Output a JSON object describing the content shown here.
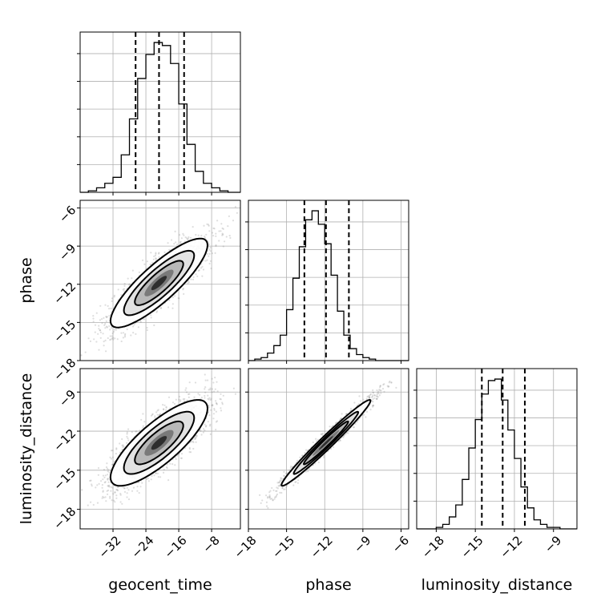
{
  "chart_data": {
    "type": "corner",
    "parameters": [
      "geocent_time",
      "phase",
      "luminosity_distance"
    ],
    "ranges": {
      "geocent_time": [
        -40,
        -1
      ],
      "phase": [
        -18,
        -5.4
      ],
      "luminosity_distance": [
        -19.5,
        -7.2
      ]
    },
    "ticks": {
      "geocent_time": [
        -32,
        -24,
        -16,
        -8
      ],
      "phase": [
        -18,
        -15,
        -12,
        -9,
        -6
      ],
      "luminosity_distance": [
        -18,
        -15,
        -12,
        -9
      ]
    },
    "tick_labels": {
      "geocent_time": [
        "−32",
        "−24",
        "−16",
        "−8"
      ],
      "phase": [
        "−18",
        "−15",
        "−12",
        "−9",
        "−6"
      ],
      "luminosity_distance": [
        "−18",
        "−15",
        "−12",
        "−9"
      ]
    },
    "quantiles": {
      "geocent_time": [
        -26.5,
        -20.8,
        -14.7
      ],
      "phase": [
        -13.6,
        -11.9,
        -10.1
      ],
      "luminosity_distance": [
        -14.5,
        -12.9,
        -11.2
      ]
    },
    "histograms": {
      "geocent_time": {
        "edges": [
          -40,
          -38,
          -36,
          -34,
          -32,
          -30,
          -28,
          -26,
          -24,
          -22,
          -20,
          -18,
          -16,
          -14,
          -12,
          -10,
          -8,
          -6,
          -4,
          -2,
          -1
        ],
        "counts": [
          0,
          1,
          3,
          6,
          10,
          25,
          49,
          76,
          92,
          100,
          98,
          86,
          59,
          32,
          14,
          6,
          3,
          1,
          0,
          0
        ]
      },
      "phase": {
        "edges": [
          -18,
          -17.5,
          -17,
          -16.5,
          -16,
          -15.5,
          -15,
          -14.5,
          -14,
          -13.5,
          -13,
          -12.5,
          -12,
          -11.5,
          -11,
          -10.5,
          -10,
          -9.5,
          -9,
          -8.5,
          -8,
          -7.5,
          -7,
          -6.5,
          -6,
          -5.4
        ],
        "counts": [
          0,
          1,
          2,
          5,
          10,
          17,
          34,
          55,
          76,
          94,
          100,
          91,
          78,
          57,
          33,
          17,
          8,
          4,
          2,
          1,
          0,
          0,
          0,
          0,
          0
        ]
      },
      "luminosity_distance": {
        "edges": [
          -19.5,
          -19,
          -18.5,
          -18,
          -17.5,
          -17,
          -16.5,
          -16,
          -15.5,
          -15,
          -14.5,
          -14,
          -13.5,
          -13,
          -12.5,
          -12,
          -11.5,
          -11,
          -10.5,
          -10,
          -9.5,
          -9,
          -8.5,
          -8,
          -7.5,
          -7.2
        ],
        "counts": [
          0,
          0,
          0,
          1,
          3,
          8,
          16,
          33,
          54,
          73,
          90,
          99,
          100,
          86,
          66,
          47,
          28,
          14,
          6,
          3,
          1,
          1,
          0,
          0,
          0
        ]
      }
    },
    "correlations": {
      "phase_vs_geocent_time": 0.85,
      "luminosity_distance_vs_geocent_time": 0.8,
      "luminosity_distance_vs_phase": 0.98
    },
    "grid": true,
    "colors": {
      "points": "#888888",
      "density": "#000000",
      "lines": "#000000"
    }
  }
}
